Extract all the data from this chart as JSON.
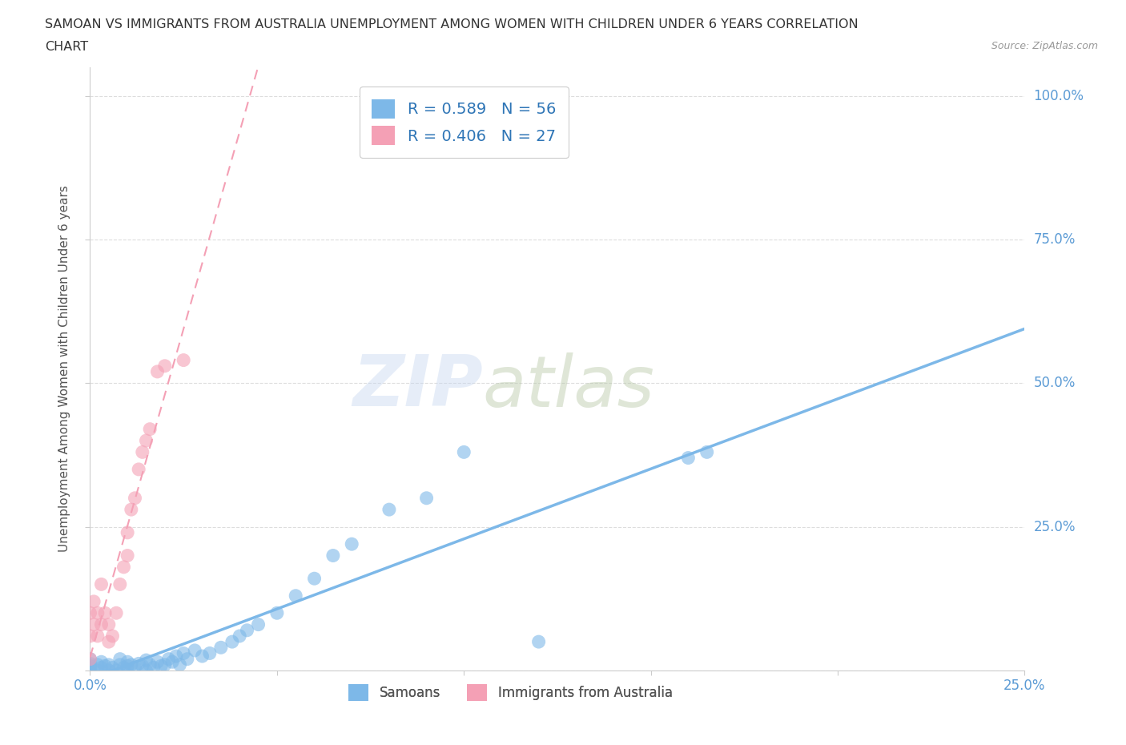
{
  "title_line1": "SAMOAN VS IMMIGRANTS FROM AUSTRALIA UNEMPLOYMENT AMONG WOMEN WITH CHILDREN UNDER 6 YEARS CORRELATION",
  "title_line2": "CHART",
  "source": "Source: ZipAtlas.com",
  "ylabel": "Unemployment Among Women with Children Under 6 years",
  "xlim": [
    0.0,
    0.25
  ],
  "ylim": [
    0.0,
    1.05
  ],
  "samoan_color": "#7db8e8",
  "australia_color": "#f4a0b5",
  "samoan_R": 0.589,
  "samoan_N": 56,
  "australia_R": 0.406,
  "australia_N": 27,
  "legend_label_samoan": "Samoans",
  "legend_label_australia": "Immigrants from Australia",
  "samoan_scatter_x": [
    0.0,
    0.0,
    0.0,
    0.0,
    0.0,
    0.002,
    0.002,
    0.003,
    0.003,
    0.004,
    0.005,
    0.005,
    0.006,
    0.007,
    0.008,
    0.008,
    0.009,
    0.01,
    0.01,
    0.01,
    0.011,
    0.012,
    0.013,
    0.014,
    0.015,
    0.015,
    0.016,
    0.017,
    0.018,
    0.019,
    0.02,
    0.021,
    0.022,
    0.023,
    0.024,
    0.025,
    0.026,
    0.028,
    0.03,
    0.032,
    0.035,
    0.038,
    0.04,
    0.042,
    0.045,
    0.05,
    0.055,
    0.06,
    0.065,
    0.07,
    0.08,
    0.09,
    0.1,
    0.12,
    0.16,
    0.165
  ],
  "samoan_scatter_y": [
    0.0,
    0.005,
    0.008,
    0.012,
    0.02,
    0.0,
    0.01,
    0.005,
    0.015,
    0.008,
    0.0,
    0.01,
    0.005,
    0.0,
    0.01,
    0.02,
    0.005,
    0.0,
    0.008,
    0.015,
    0.01,
    0.005,
    0.012,
    0.008,
    0.0,
    0.018,
    0.01,
    0.005,
    0.015,
    0.008,
    0.01,
    0.02,
    0.015,
    0.025,
    0.01,
    0.03,
    0.02,
    0.035,
    0.025,
    0.03,
    0.04,
    0.05,
    0.06,
    0.07,
    0.08,
    0.1,
    0.13,
    0.16,
    0.2,
    0.22,
    0.28,
    0.3,
    0.38,
    0.05,
    0.37,
    0.38
  ],
  "australia_scatter_x": [
    0.0,
    0.0,
    0.0,
    0.001,
    0.001,
    0.002,
    0.002,
    0.003,
    0.003,
    0.004,
    0.005,
    0.005,
    0.006,
    0.007,
    0.008,
    0.009,
    0.01,
    0.01,
    0.011,
    0.012,
    0.013,
    0.014,
    0.015,
    0.016,
    0.018,
    0.02,
    0.025
  ],
  "australia_scatter_y": [
    0.02,
    0.06,
    0.1,
    0.08,
    0.12,
    0.06,
    0.1,
    0.08,
    0.15,
    0.1,
    0.05,
    0.08,
    0.06,
    0.1,
    0.15,
    0.18,
    0.2,
    0.24,
    0.28,
    0.3,
    0.35,
    0.38,
    0.4,
    0.42,
    0.52,
    0.53,
    0.54
  ],
  "background_color": "#ffffff",
  "grid_color": "#dddddd",
  "tick_color": "#555555",
  "title_color": "#333333",
  "right_label_color": "#5b9bd5",
  "axis_label_color": "#5b9bd5"
}
